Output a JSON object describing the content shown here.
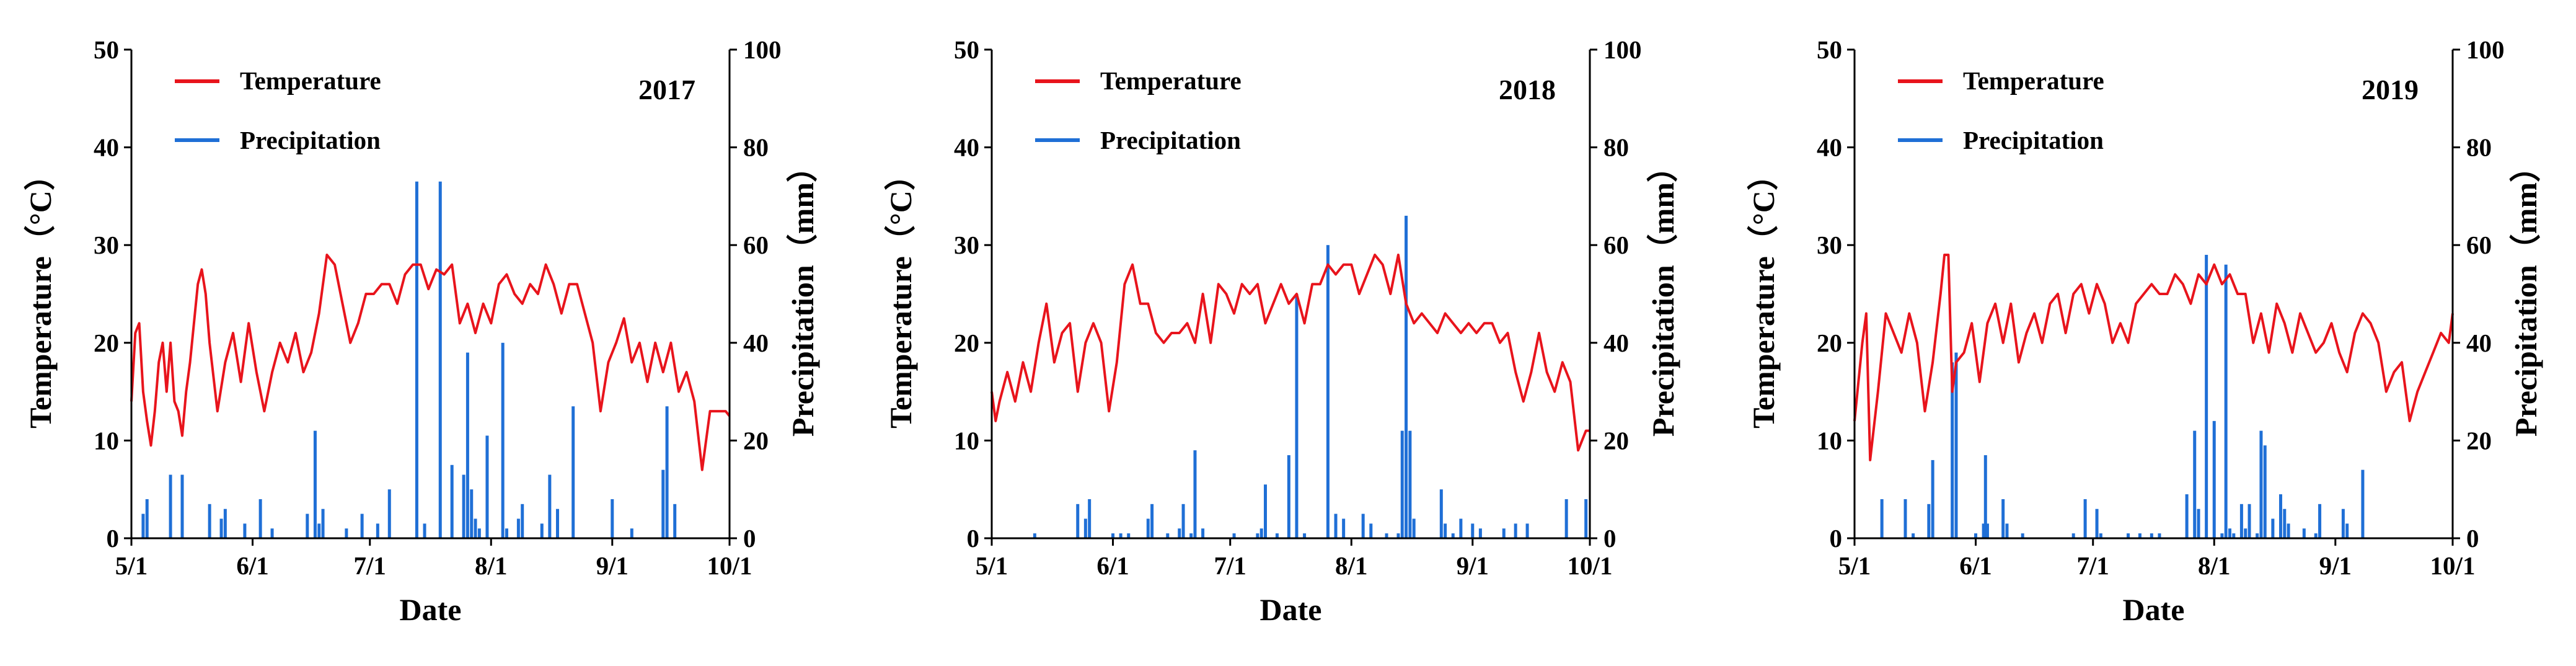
{
  "colors": {
    "temperature": "#e8141c",
    "precipitation": "#1f6fd6",
    "axis": "#000000"
  },
  "chart_data": [
    {
      "type": "line+bar",
      "title": "2017",
      "xlabel": "Date",
      "ylabel_left": "Temperature（°C）",
      "ylabel_right": "Precipitation（mm）",
      "ylim_left": [
        0,
        50
      ],
      "ylim_right": [
        0,
        100
      ],
      "yticks_left": [
        0,
        10,
        20,
        30,
        40,
        50
      ],
      "yticks_right": [
        0,
        20,
        40,
        60,
        80,
        100
      ],
      "xlim": [
        0,
        153
      ],
      "xticks": [
        {
          "day": 0,
          "label": "5/1"
        },
        {
          "day": 31,
          "label": "6/1"
        },
        {
          "day": 61,
          "label": "7/1"
        },
        {
          "day": 92,
          "label": "8/1"
        },
        {
          "day": 123,
          "label": "9/1"
        },
        {
          "day": 153,
          "label": "10/1"
        }
      ],
      "legend": [
        "Temperature",
        "Precipitation"
      ],
      "grid": false,
      "temperature": {
        "name": "Temperature",
        "x": [
          0,
          1,
          2,
          3,
          4,
          5,
          6,
          7,
          8,
          9,
          10,
          11,
          12,
          13,
          14,
          15,
          16,
          17,
          18,
          19,
          20,
          22,
          24,
          26,
          28,
          30,
          32,
          34,
          36,
          38,
          40,
          42,
          44,
          46,
          48,
          50,
          52,
          54,
          56,
          58,
          60,
          62,
          64,
          66,
          68,
          70,
          72,
          74,
          76,
          78,
          80,
          82,
          84,
          86,
          88,
          90,
          92,
          94,
          96,
          98,
          100,
          102,
          104,
          106,
          108,
          110,
          112,
          114,
          116,
          118,
          120,
          122,
          124,
          126,
          128,
          130,
          132,
          134,
          136,
          138,
          140,
          142,
          144,
          146,
          148,
          150,
          152,
          153
        ],
        "values": [
          14,
          21,
          22,
          15,
          12,
          9.5,
          13,
          18,
          20,
          15,
          20,
          14,
          13,
          10.5,
          15,
          18,
          22,
          26,
          27.5,
          25,
          20,
          13,
          18,
          21,
          16,
          22,
          17,
          13,
          17,
          20,
          18,
          21,
          17,
          19,
          23,
          29,
          28,
          24,
          20,
          22,
          25,
          25,
          26,
          26,
          24,
          27,
          28,
          28,
          25.5,
          27.5,
          27,
          28,
          22,
          24,
          21,
          24,
          22,
          26,
          27,
          25,
          24,
          26,
          25,
          28,
          26,
          23,
          26,
          26,
          23,
          20,
          13,
          18,
          20,
          22.5,
          18,
          20,
          16,
          20,
          17,
          20,
          15,
          17,
          14,
          7,
          13,
          13,
          13,
          12.5
        ]
      },
      "precipitation": {
        "name": "Precipitation",
        "days": [
          3,
          4,
          10,
          13,
          20,
          23,
          24,
          29,
          33,
          36,
          45,
          47,
          48,
          49,
          55,
          59,
          63,
          66,
          73,
          75,
          79,
          82,
          85,
          86,
          87,
          88,
          89,
          91,
          95,
          96,
          99,
          100,
          105,
          107,
          109,
          113,
          123,
          128,
          136,
          137,
          139
        ],
        "values": [
          5,
          8,
          13,
          13,
          7,
          4,
          6,
          3,
          8,
          2,
          5,
          22,
          3,
          6,
          2,
          5,
          3,
          10,
          73,
          3,
          73,
          15,
          13,
          38,
          10,
          4,
          2,
          21,
          40,
          2,
          4,
          7,
          3,
          13,
          6,
          27,
          8,
          2,
          14,
          27,
          7
        ]
      }
    },
    {
      "type": "line+bar",
      "title": "2018",
      "xlabel": "Date",
      "ylabel_left": "Temperature（°C）",
      "ylabel_right": "Precipitation（mm）",
      "ylim_left": [
        0,
        50
      ],
      "ylim_right": [
        0,
        100
      ],
      "yticks_left": [
        0,
        10,
        20,
        30,
        40,
        50
      ],
      "yticks_right": [
        0,
        20,
        40,
        60,
        80,
        100
      ],
      "xlim": [
        0,
        153
      ],
      "xticks": [
        {
          "day": 0,
          "label": "5/1"
        },
        {
          "day": 31,
          "label": "6/1"
        },
        {
          "day": 61,
          "label": "7/1"
        },
        {
          "day": 92,
          "label": "8/1"
        },
        {
          "day": 123,
          "label": "9/1"
        },
        {
          "day": 153,
          "label": "10/1"
        }
      ],
      "legend": [
        "Temperature",
        "Precipitation"
      ],
      "grid": false,
      "temperature": {
        "name": "Temperature",
        "x": [
          0,
          1,
          2,
          4,
          6,
          8,
          10,
          12,
          14,
          16,
          18,
          20,
          22,
          24,
          26,
          28,
          30,
          32,
          34,
          36,
          38,
          40,
          42,
          44,
          46,
          48,
          50,
          52,
          54,
          56,
          58,
          60,
          62,
          64,
          66,
          68,
          70,
          72,
          74,
          76,
          78,
          80,
          82,
          84,
          86,
          88,
          90,
          92,
          94,
          96,
          98,
          100,
          102,
          104,
          106,
          108,
          110,
          112,
          114,
          116,
          118,
          120,
          122,
          124,
          126,
          128,
          130,
          132,
          134,
          136,
          138,
          140,
          142,
          144,
          146,
          148,
          150,
          152,
          153
        ],
        "values": [
          15,
          12,
          14,
          17,
          14,
          18,
          15,
          20,
          24,
          18,
          21,
          22,
          15,
          20,
          22,
          20,
          13,
          18,
          26,
          28,
          24,
          24,
          21,
          20,
          21,
          21,
          22,
          20,
          25,
          20,
          26,
          25,
          23,
          26,
          25,
          26,
          22,
          24,
          26,
          24,
          25,
          22,
          26,
          26,
          28,
          27,
          28,
          28,
          25,
          27,
          29,
          28,
          25,
          29,
          24,
          22,
          23,
          22,
          21,
          23,
          22,
          21,
          22,
          21,
          22,
          22,
          20,
          21,
          17,
          14,
          17,
          21,
          17,
          15,
          18,
          16,
          9,
          11,
          11
        ]
      },
      "precipitation": {
        "name": "Precipitation",
        "days": [
          11,
          22,
          24,
          25,
          31,
          33,
          35,
          40,
          41,
          45,
          48,
          49,
          51,
          52,
          54,
          62,
          68,
          69,
          70,
          73,
          76,
          78,
          80,
          86,
          88,
          90,
          95,
          97,
          101,
          104,
          105,
          106,
          107,
          108,
          115,
          116,
          118,
          120,
          123,
          125,
          131,
          134,
          137,
          147,
          152
        ],
        "values": [
          1,
          7,
          4,
          8,
          1,
          1,
          1,
          4,
          7,
          1,
          2,
          7,
          1,
          18,
          2,
          1,
          1,
          2,
          11,
          1,
          17,
          50,
          1,
          60,
          5,
          4,
          5,
          3,
          1,
          1,
          22,
          66,
          22,
          4,
          10,
          3,
          1,
          4,
          3,
          2,
          2,
          3,
          3,
          8,
          8
        ]
      }
    },
    {
      "type": "line+bar",
      "title": "2019",
      "xlabel": "Date",
      "ylabel_left": "Temperature（°C）",
      "ylabel_right": "Precipitation（mm）",
      "ylim_left": [
        0,
        50
      ],
      "ylim_right": [
        0,
        100
      ],
      "yticks_left": [
        0,
        10,
        20,
        30,
        40,
        50
      ],
      "yticks_right": [
        0,
        20,
        40,
        60,
        80,
        100
      ],
      "xlim": [
        0,
        153
      ],
      "xticks": [
        {
          "day": 0,
          "label": "5/1"
        },
        {
          "day": 31,
          "label": "6/1"
        },
        {
          "day": 61,
          "label": "7/1"
        },
        {
          "day": 92,
          "label": "8/1"
        },
        {
          "day": 123,
          "label": "9/1"
        },
        {
          "day": 153,
          "label": "10/1"
        }
      ],
      "legend": [
        "Temperature",
        "Precipitation"
      ],
      "grid": false,
      "temperature": {
        "name": "Temperature",
        "x": [
          0,
          1,
          2,
          3,
          4,
          6,
          8,
          10,
          12,
          14,
          16,
          18,
          20,
          22,
          23,
          24,
          25,
          26,
          28,
          30,
          32,
          34,
          36,
          38,
          40,
          42,
          44,
          46,
          48,
          50,
          52,
          54,
          56,
          58,
          60,
          62,
          64,
          66,
          68,
          70,
          72,
          74,
          76,
          78,
          80,
          82,
          84,
          86,
          88,
          90,
          92,
          94,
          96,
          98,
          100,
          102,
          104,
          106,
          108,
          110,
          112,
          114,
          116,
          118,
          120,
          122,
          124,
          126,
          128,
          130,
          132,
          134,
          136,
          138,
          140,
          142,
          144,
          146,
          148,
          150,
          152,
          153
        ],
        "values": [
          12,
          16,
          20,
          23,
          8,
          15,
          23,
          21,
          19,
          23,
          20,
          13,
          18,
          25,
          29,
          29,
          15,
          18,
          19,
          22,
          16,
          22,
          24,
          20,
          24,
          18,
          21,
          23,
          20,
          24,
          25,
          21,
          25,
          26,
          23,
          26,
          24,
          20,
          22,
          20,
          24,
          25,
          26,
          25,
          25,
          27,
          26,
          24,
          27,
          26,
          28,
          26,
          27,
          25,
          25,
          20,
          23,
          19,
          24,
          22,
          19,
          23,
          21,
          19,
          20,
          22,
          19,
          17,
          21,
          23,
          22,
          20,
          15,
          17,
          18,
          12,
          15,
          17,
          19,
          21,
          20,
          23
        ]
      },
      "precipitation": {
        "name": "Precipitation",
        "days": [
          7,
          13,
          15,
          19,
          20,
          25,
          26,
          31,
          33,
          33.5,
          34,
          38,
          39,
          43,
          56,
          59,
          62,
          63,
          70,
          73,
          76,
          78,
          85,
          87,
          88,
          90,
          92,
          94,
          95,
          96,
          97,
          99,
          100,
          101,
          103,
          104,
          105,
          107,
          109,
          110,
          111,
          115,
          118,
          119,
          125,
          126,
          130
        ],
        "values": [
          8,
          8,
          1,
          7,
          16,
          36,
          38,
          1,
          3,
          17,
          3,
          8,
          3,
          1,
          1,
          8,
          6,
          1,
          1,
          1,
          1,
          1,
          9,
          22,
          6,
          58,
          24,
          1,
          56,
          2,
          1,
          7,
          2,
          7,
          1,
          22,
          19,
          4,
          9,
          6,
          3,
          2,
          1,
          7,
          6,
          3,
          14
        ]
      }
    }
  ]
}
